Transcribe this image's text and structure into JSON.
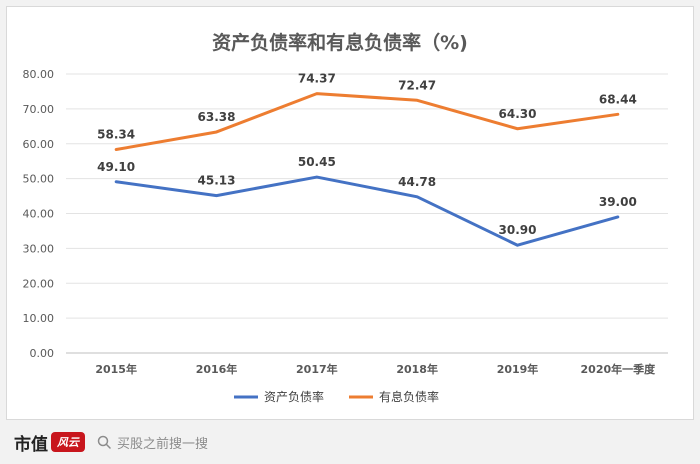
{
  "chart_data": {
    "type": "line",
    "title": "资产负债率和有息负债率（%)",
    "categories": [
      "2015年",
      "2016年",
      "2017年",
      "2018年",
      "2019年",
      "2020年一季度"
    ],
    "ylim": [
      0,
      80
    ],
    "yticks": [
      "0.00",
      "10.00",
      "20.00",
      "30.00",
      "40.00",
      "50.00",
      "60.00",
      "70.00",
      "80.00"
    ],
    "grid": true,
    "legend_position": "bottom",
    "series": [
      {
        "name": "资产负债率",
        "color": "#4472c4",
        "values": [
          49.1,
          45.13,
          50.45,
          44.78,
          30.9,
          39.0
        ],
        "labels": [
          "49.10",
          "45.13",
          "50.45",
          "44.78",
          "30.90",
          "39.00"
        ]
      },
      {
        "name": "有息负债率",
        "color": "#ed7d31",
        "values": [
          58.34,
          63.38,
          74.37,
          72.47,
          64.3,
          68.44
        ],
        "labels": [
          "58.34",
          "63.38",
          "74.37",
          "72.47",
          "64.30",
          "68.44"
        ]
      }
    ]
  },
  "footer": {
    "logo_text": "市值",
    "logo_mark_text": "风云",
    "search_icon": "search-icon",
    "search_text": "买股之前搜一搜"
  }
}
